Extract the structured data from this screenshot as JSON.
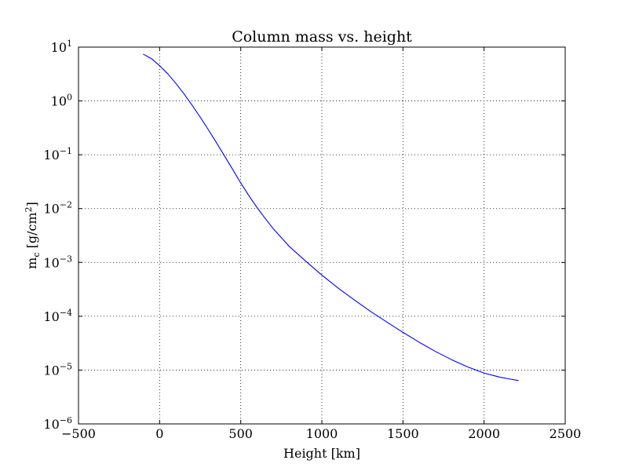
{
  "chart_data": {
    "type": "line",
    "title": "Column mass vs. height",
    "xlabel": "Height [km]",
    "ylabel": "m_c [g/cm^2]",
    "ylabel_parts": {
      "base": "m",
      "subscript": "c",
      "unit_open": " [g/cm",
      "unit_power": "2",
      "unit_close": "]"
    },
    "xscale": "linear",
    "yscale": "log",
    "xlim": [
      -500,
      2500
    ],
    "ylim": [
      1e-06,
      10
    ],
    "grid": true,
    "x_ticks": [
      -500,
      0,
      500,
      1000,
      1500,
      2000,
      2500
    ],
    "y_ticks": [
      {
        "base": "10",
        "exponent": "-6",
        "value": 1e-06
      },
      {
        "base": "10",
        "exponent": "-5",
        "value": 1e-05
      },
      {
        "base": "10",
        "exponent": "-4",
        "value": 0.0001
      },
      {
        "base": "10",
        "exponent": "-3",
        "value": 0.001
      },
      {
        "base": "10",
        "exponent": "-2",
        "value": 0.01
      },
      {
        "base": "10",
        "exponent": "-1",
        "value": 0.1
      },
      {
        "base": "10",
        "exponent": "0",
        "value": 1
      },
      {
        "base": "10",
        "exponent": "1",
        "value": 10
      }
    ],
    "series": [
      {
        "color": "#0000ff",
        "x": [
          -100,
          -50,
          0,
          50,
          100,
          150,
          200,
          250,
          300,
          350,
          400,
          450,
          500,
          550,
          600,
          650,
          700,
          800,
          900,
          1000,
          1100,
          1200,
          1300,
          1400,
          1500,
          1600,
          1700,
          1800,
          1900,
          2000,
          2100,
          2150,
          2210
        ],
        "y": [
          7.38,
          6.1,
          4.52,
          3.2,
          2.12,
          1.36,
          0.834,
          0.5,
          0.293,
          0.168,
          0.0953,
          0.0537,
          0.0299,
          0.0174,
          0.0105,
          0.0066,
          0.00425,
          0.00197,
          0.00106,
          0.000582,
          0.000334,
          0.000201,
          0.000123,
          7.82e-05,
          5.02e-05,
          3.29e-05,
          2.22e-05,
          1.56e-05,
          1.14e-05,
          8.8e-06,
          7.35e-06,
          6.9e-06,
          6.4e-06
        ]
      }
    ]
  }
}
